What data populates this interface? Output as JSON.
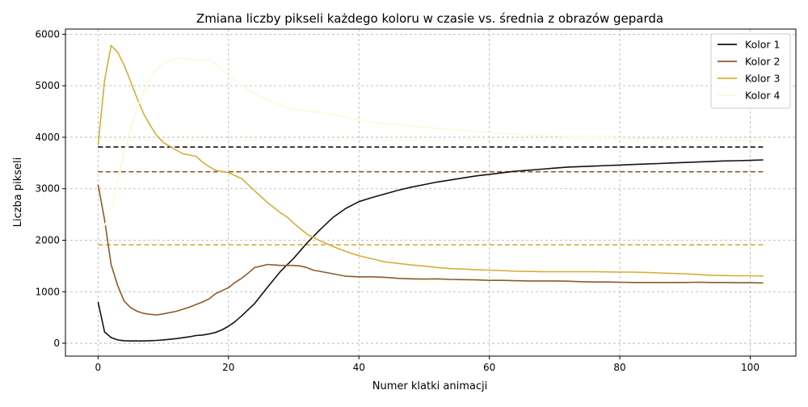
{
  "chart_data": {
    "type": "line",
    "title": "Zmiana liczby pikseli każdego koloru w czasie vs. średnia z obrazów geparda",
    "xlabel": "Numer klatki animacji",
    "ylabel": "Liczba pikseli",
    "xlim": [
      -5,
      107
    ],
    "ylim": [
      -250,
      6100
    ],
    "xticks": [
      0,
      20,
      40,
      60,
      80,
      100
    ],
    "xtick_labels": [
      "0",
      "20",
      "40",
      "60",
      "80",
      "100"
    ],
    "yticks": [
      0,
      1000,
      2000,
      3000,
      4000,
      5000,
      6000
    ],
    "ytick_labels": [
      "0",
      "1000",
      "2000",
      "3000",
      "4000",
      "5000",
      "6000"
    ],
    "grid": true,
    "legend_position": "top-right",
    "series": [
      {
        "name": "Kolor 1",
        "color": "#1a0f0f",
        "x": [
          0,
          1,
          2,
          3,
          4,
          5,
          6,
          7,
          8,
          9,
          10,
          12,
          14,
          15,
          16,
          17,
          18,
          19,
          20,
          21,
          22,
          24,
          26,
          28,
          30,
          32,
          34,
          36,
          38,
          40,
          42,
          44,
          46,
          48,
          50,
          52,
          54,
          56,
          58,
          60,
          62,
          64,
          66,
          68,
          70,
          72,
          74,
          76,
          78,
          80,
          82,
          84,
          86,
          88,
          90,
          92,
          94,
          96,
          98,
          100,
          102
        ],
        "values": [
          800,
          220,
          110,
          65,
          50,
          45,
          45,
          45,
          50,
          55,
          65,
          90,
          125,
          150,
          160,
          180,
          210,
          260,
          330,
          420,
          530,
          770,
          1090,
          1400,
          1650,
          1940,
          2200,
          2440,
          2620,
          2750,
          2830,
          2900,
          2970,
          3030,
          3080,
          3130,
          3170,
          3210,
          3250,
          3280,
          3310,
          3340,
          3360,
          3380,
          3400,
          3420,
          3430,
          3440,
          3450,
          3460,
          3470,
          3480,
          3490,
          3500,
          3510,
          3520,
          3530,
          3540,
          3545,
          3550,
          3560
        ],
        "mean": 3810
      },
      {
        "name": "Kolor 2",
        "color": "#8b5a2b",
        "x": [
          0,
          1,
          2,
          3,
          4,
          5,
          6,
          7,
          8,
          9,
          10,
          12,
          14,
          16,
          17,
          18,
          20,
          21,
          22,
          23,
          24,
          26,
          28,
          30,
          31,
          32,
          33,
          36,
          38,
          40,
          42,
          44,
          46,
          48,
          50,
          52,
          54,
          56,
          58,
          60,
          62,
          64,
          66,
          68,
          70,
          72,
          74,
          76,
          78,
          80,
          82,
          84,
          86,
          88,
          90,
          92,
          94,
          96,
          98,
          100,
          102
        ],
        "values": [
          3080,
          2400,
          1530,
          1120,
          820,
          690,
          620,
          580,
          560,
          550,
          570,
          620,
          700,
          800,
          860,
          960,
          1080,
          1180,
          1260,
          1360,
          1470,
          1530,
          1510,
          1510,
          1500,
          1470,
          1420,
          1350,
          1300,
          1290,
          1290,
          1280,
          1260,
          1250,
          1245,
          1250,
          1240,
          1235,
          1230,
          1220,
          1220,
          1215,
          1210,
          1210,
          1210,
          1205,
          1195,
          1190,
          1190,
          1185,
          1180,
          1180,
          1180,
          1180,
          1180,
          1185,
          1180,
          1180,
          1175,
          1175,
          1170
        ],
        "mean": 3330
      },
      {
        "name": "Kolor 3",
        "color": "#d4af37",
        "x": [
          0,
          1,
          2,
          3,
          4,
          5,
          6,
          7,
          8,
          9,
          10,
          12,
          13,
          15,
          16,
          17,
          18,
          20,
          22,
          24,
          26,
          28,
          29,
          30,
          32,
          34,
          36,
          38,
          40,
          42,
          44,
          46,
          48,
          50,
          52,
          54,
          56,
          58,
          60,
          62,
          64,
          66,
          68,
          70,
          72,
          74,
          76,
          78,
          80,
          82,
          84,
          86,
          88,
          90,
          92,
          94,
          96,
          98,
          100,
          102
        ],
        "values": [
          3850,
          5100,
          5780,
          5650,
          5400,
          5080,
          4750,
          4450,
          4230,
          4030,
          3900,
          3750,
          3680,
          3630,
          3520,
          3430,
          3360,
          3310,
          3200,
          2960,
          2730,
          2530,
          2450,
          2330,
          2120,
          1990,
          1880,
          1780,
          1700,
          1640,
          1580,
          1550,
          1520,
          1500,
          1470,
          1450,
          1440,
          1430,
          1420,
          1410,
          1400,
          1395,
          1390,
          1390,
          1390,
          1390,
          1390,
          1385,
          1380,
          1380,
          1375,
          1365,
          1355,
          1350,
          1335,
          1320,
          1315,
          1310,
          1310,
          1305
        ],
        "mean": 1910
      },
      {
        "name": "Kolor 4",
        "color": "#fff8dc",
        "x": [
          0,
          1,
          2,
          3,
          4,
          5,
          6,
          7,
          8,
          9,
          10,
          11,
          12,
          13,
          14,
          15,
          16,
          17,
          18,
          20,
          22,
          24,
          26,
          28,
          30,
          32,
          34,
          36,
          38,
          40,
          42,
          44,
          46,
          48,
          50,
          52,
          54,
          56,
          58,
          60,
          62,
          64,
          66,
          68,
          70,
          72,
          74,
          76,
          78,
          80,
          82,
          84,
          86,
          88,
          90,
          92,
          94,
          96,
          98,
          100,
          102
        ],
        "values": [
          2150,
          2280,
          2600,
          3150,
          3700,
          4180,
          4580,
          4900,
          5150,
          5330,
          5430,
          5490,
          5520,
          5540,
          5510,
          5490,
          5500,
          5510,
          5420,
          5200,
          5000,
          4850,
          4720,
          4620,
          4540,
          4510,
          4480,
          4440,
          4390,
          4330,
          4290,
          4270,
          4250,
          4220,
          4200,
          4170,
          4150,
          4130,
          4110,
          4090,
          4070,
          4060,
          4045,
          4030,
          4020,
          4010,
          4000,
          3995,
          3990,
          3985,
          3980,
          3975,
          3970,
          3965,
          3960,
          3955,
          3952,
          3950,
          3948,
          3945,
          3945
        ],
        "mean": 3950
      }
    ]
  }
}
